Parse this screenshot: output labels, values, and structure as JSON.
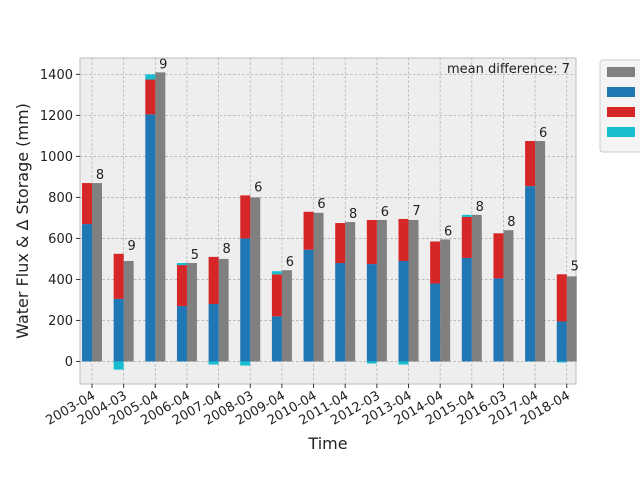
{
  "chart_data": {
    "type": "bar",
    "xlabel": "Time",
    "ylabel": "Water Flux & Δ Storage (mm)",
    "annotation": "mean difference: 7",
    "ylim": [
      -110,
      1480
    ],
    "yticks": [
      0,
      200,
      400,
      600,
      800,
      1000,
      1200,
      1400
    ],
    "grid": true,
    "legend_position": "outside-right",
    "categories": [
      "2003-04",
      "2004-03",
      "2005-04",
      "2006-04",
      "2007-04",
      "2008-03",
      "2009-04",
      "2010-04",
      "2011-04",
      "2012-03",
      "2013-04",
      "2014-04",
      "2015-04",
      "2016-03",
      "2017-04",
      "2018-04"
    ],
    "series": [
      {
        "color": "#1f77b4",
        "values": [
          670,
          305,
          1205,
          270,
          280,
          600,
          220,
          545,
          480,
          475,
          490,
          380,
          505,
          405,
          855,
          195
        ]
      },
      {
        "color": "#d62728",
        "values": [
          200,
          220,
          170,
          200,
          230,
          210,
          205,
          185,
          195,
          215,
          205,
          205,
          200,
          220,
          220,
          230
        ]
      },
      {
        "color": "#17becf",
        "values": [
          0,
          -40,
          25,
          10,
          -15,
          -20,
          15,
          0,
          0,
          -10,
          -15,
          0,
          10,
          0,
          0,
          -5
        ]
      },
      {
        "color": "#808080",
        "values": [
          870,
          490,
          1410,
          480,
          500,
          800,
          445,
          725,
          680,
          690,
          690,
          595,
          715,
          640,
          1075,
          415
        ]
      }
    ],
    "bar_labels": [
      "8",
      "9",
      "9",
      "5",
      "8",
      "6",
      "6",
      "6",
      "8",
      "6",
      "7",
      "6",
      "8",
      "8",
      "6",
      "5"
    ]
  }
}
